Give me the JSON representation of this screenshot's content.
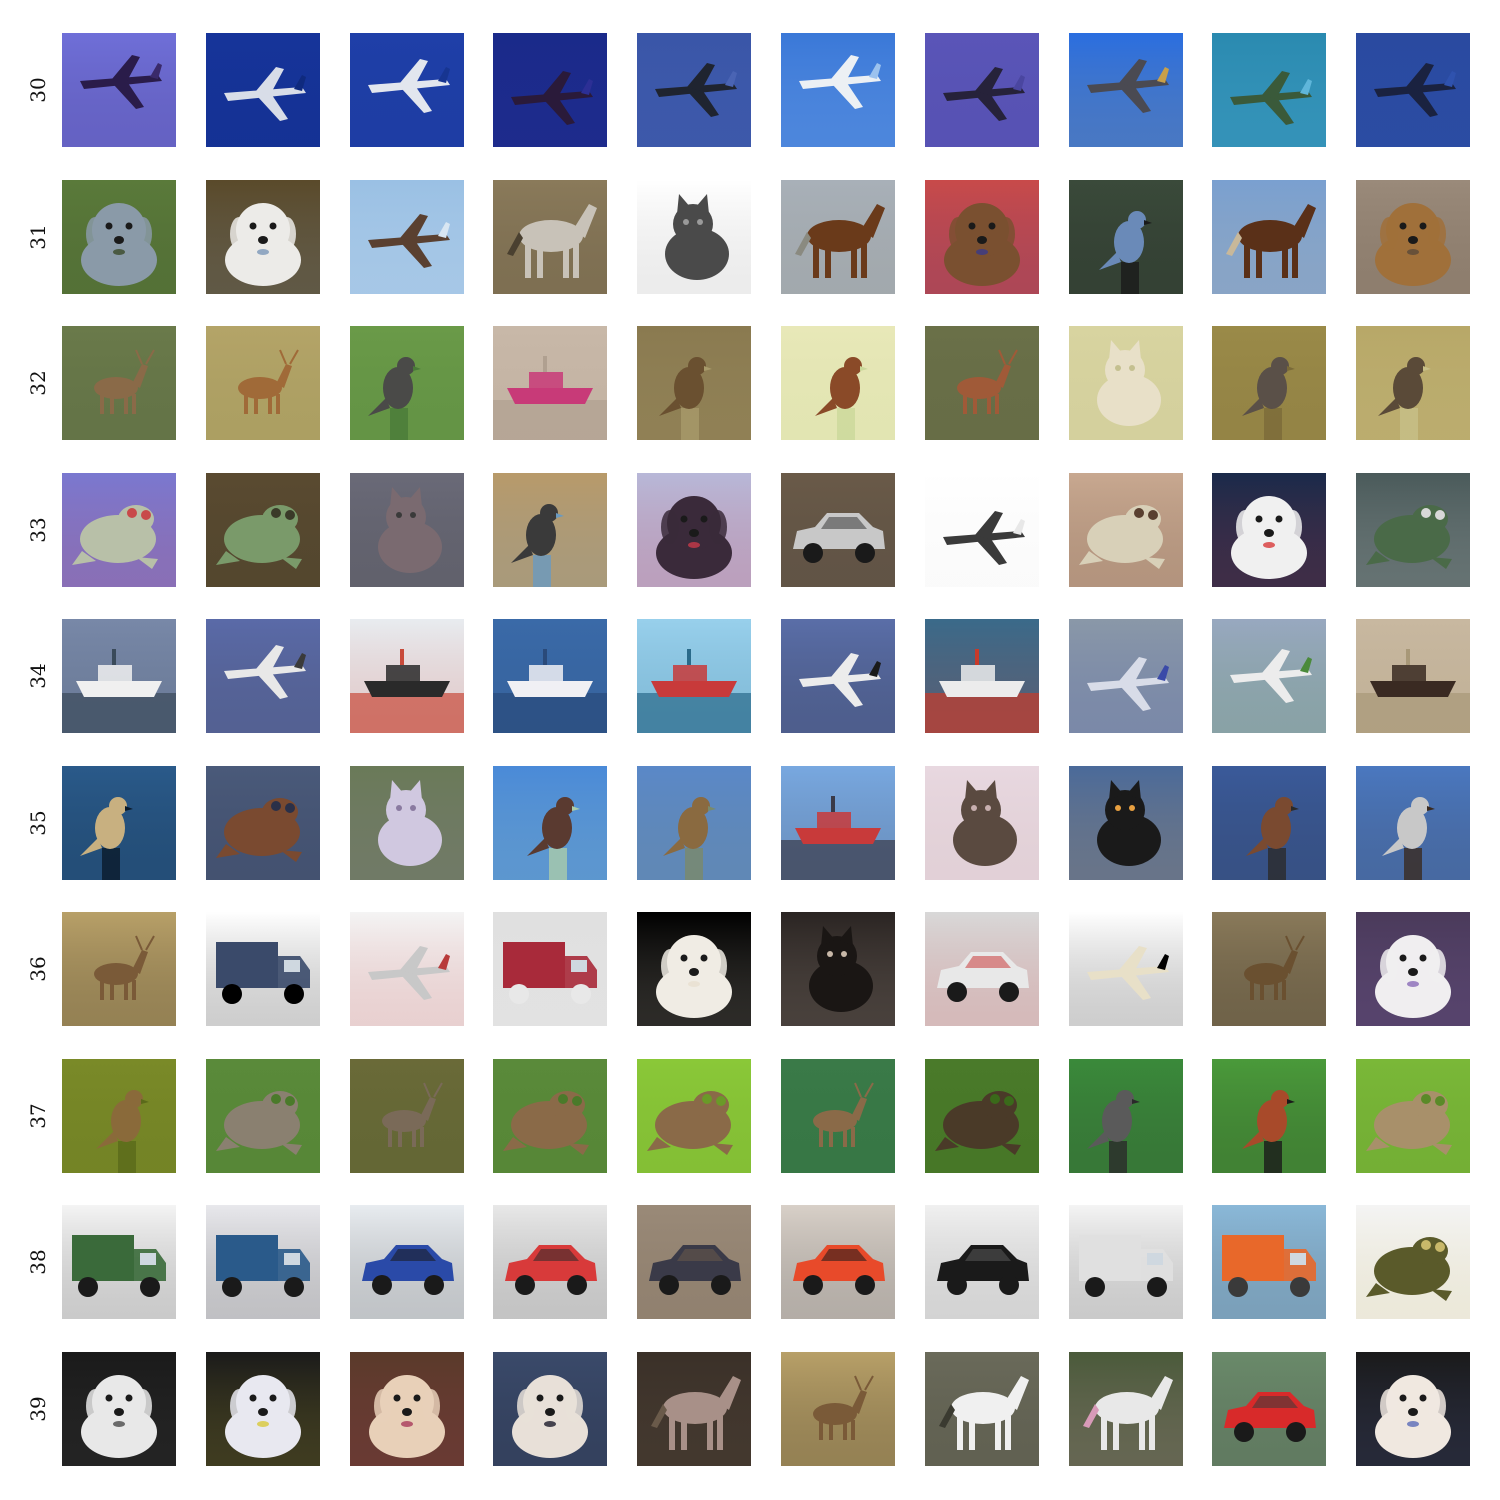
{
  "rows": [
    {
      "label": "30",
      "cells": [
        {
          "subject": "airplane",
          "bg": "#6f6fd8",
          "accent": "#2a1c4a",
          "detail": "#3a2a6a"
        },
        {
          "subject": "airplane",
          "bg": "#16349a",
          "accent": "#d8dde8",
          "detail": "#0f2a7e"
        },
        {
          "subject": "airplane",
          "bg": "#1f3fa8",
          "accent": "#e2e6ee",
          "detail": "#173591"
        },
        {
          "subject": "airplane",
          "bg": "#1a2a8a",
          "accent": "#2a1a3a",
          "detail": "#2c2f95"
        },
        {
          "subject": "airplane",
          "bg": "#3a56a8",
          "accent": "#1f2430",
          "detail": "#4a64b4"
        },
        {
          "subject": "airplane",
          "bg": "#3a78d8",
          "accent": "#ecf0f4",
          "detail": "#9cc2ee"
        },
        {
          "subject": "airplane",
          "bg": "#5a55b8",
          "accent": "#26223a",
          "detail": "#4a46a0"
        },
        {
          "subject": "airplane",
          "bg": "#2a6ee0",
          "accent": "#4a4a52",
          "detail": "#c8a04a"
        },
        {
          "subject": "airplane",
          "bg": "#2a8ab0",
          "accent": "#3a5a3a",
          "detail": "#5fb6da"
        },
        {
          "subject": "airplane",
          "bg": "#2a4aa0",
          "accent": "#1a2240",
          "detail": "#2f52ae"
        }
      ]
    },
    {
      "label": "31",
      "cells": [
        {
          "subject": "dog",
          "bg": "#5a7a3a",
          "accent": "#8a9aa8",
          "detail": "#3a4a28"
        },
        {
          "subject": "dog",
          "bg": "#5a4a2a",
          "accent": "#ecebe8",
          "detail": "#7c97b8"
        },
        {
          "subject": "airplane",
          "bg": "#9ac0e4",
          "accent": "#5a4030",
          "detail": "#d8e6f2"
        },
        {
          "subject": "horse",
          "bg": "#8a7a5a",
          "accent": "#c8c2b8",
          "detail": "#4a4030"
        },
        {
          "subject": "cat",
          "bg": "#ffffff",
          "accent": "#4a4a4a",
          "detail": "#9a9a9a"
        },
        {
          "subject": "horse",
          "bg": "#a8b0b8",
          "accent": "#6a3a1a",
          "detail": "#8a8a80"
        },
        {
          "subject": "dog",
          "bg": "#c84a4a",
          "accent": "#7a5030",
          "detail": "#3a3a8a"
        },
        {
          "subject": "bird",
          "bg": "#3a4a3a",
          "accent": "#6a8ab8",
          "detail": "#1a1a1a"
        },
        {
          "subject": "horse",
          "bg": "#7aa0d0",
          "accent": "#5a3018",
          "detail": "#c8b89a"
        },
        {
          "subject": "dog",
          "bg": "#9a8a7a",
          "accent": "#a0703a",
          "detail": "#5a4a3a"
        }
      ]
    },
    {
      "label": "32",
      "cells": [
        {
          "subject": "deer",
          "bg": "#6a7a4a",
          "accent": "#8a6a48",
          "detail": "#4a5a3a"
        },
        {
          "subject": "deer",
          "bg": "#b4a468",
          "accent": "#a06a38",
          "detail": "#8a8a4a"
        },
        {
          "subject": "bird",
          "bg": "#6a9a48",
          "accent": "#4a4a48",
          "detail": "#4a7a38"
        },
        {
          "subject": "ship",
          "bg": "#c8b8a8",
          "accent": "#c83a78",
          "detail": "#b0a090"
        },
        {
          "subject": "bird",
          "bg": "#8a7a50",
          "accent": "#6a5030",
          "detail": "#a89a6a"
        },
        {
          "subject": "bird",
          "bg": "#e8e8b8",
          "accent": "#8a4a28",
          "detail": "#cad89a"
        },
        {
          "subject": "deer",
          "bg": "#6a7048",
          "accent": "#a05a38",
          "detail": "#5a6040"
        },
        {
          "subject": "cat",
          "bg": "#d8d4a0",
          "accent": "#e8e0c8",
          "detail": "#c4c090"
        },
        {
          "subject": "bird",
          "bg": "#9a8a48",
          "accent": "#5a5048",
          "detail": "#7a6a38"
        },
        {
          "subject": "bird",
          "bg": "#b8a868",
          "accent": "#5a4a38",
          "detail": "#c8c088"
        }
      ]
    },
    {
      "label": "33",
      "cells": [
        {
          "subject": "frog",
          "bg": "#7a78d0",
          "accent": "#b8c0a8",
          "detail": "#c84a4a"
        },
        {
          "subject": "frog",
          "bg": "#5a4a30",
          "accent": "#7a9a6a",
          "detail": "#3a3a28"
        },
        {
          "subject": "cat",
          "bg": "#6a6a78",
          "accent": "#7a6a70",
          "detail": "#3a3a3a"
        },
        {
          "subject": "bird",
          "bg": "#b89a6a",
          "accent": "#3a3a3a",
          "detail": "#6a9ac0"
        },
        {
          "subject": "dog",
          "bg": "#b8b8d8",
          "accent": "#3a2a3a",
          "detail": "#c83a4a"
        },
        {
          "subject": "automobile",
          "bg": "#6a5a48",
          "accent": "#c8c8c8",
          "detail": "#3a3a3a"
        },
        {
          "subject": "airplane",
          "bg": "#ffffff",
          "accent": "#3a3a3a",
          "detail": "#e8e8e8"
        },
        {
          "subject": "frog",
          "bg": "#c8a890",
          "accent": "#d8d0b8",
          "detail": "#5a4030"
        },
        {
          "subject": "dog",
          "bg": "#1a2a4a",
          "accent": "#f0f0f0",
          "detail": "#d83a3a"
        },
        {
          "subject": "frog",
          "bg": "#4a5a5a",
          "accent": "#4a6a48",
          "detail": "#d8d8d8"
        }
      ]
    },
    {
      "label": "34",
      "cells": [
        {
          "subject": "ship",
          "bg": "#7888a8",
          "accent": "#f0f0f0",
          "detail": "#3a4a5a"
        },
        {
          "subject": "airplane",
          "bg": "#5a6aa8",
          "accent": "#e8e8e8",
          "detail": "#3a3a3a"
        },
        {
          "subject": "ship",
          "bg": "#e8ecf0",
          "accent": "#2a2a2a",
          "detail": "#c84a3a"
        },
        {
          "subject": "ship",
          "bg": "#3a6aa8",
          "accent": "#f0f0f4",
          "detail": "#2a4a7a"
        },
        {
          "subject": "ship",
          "bg": "#98d0ec",
          "accent": "#c83a3a",
          "detail": "#2a6a8a"
        },
        {
          "subject": "airplane",
          "bg": "#5a6ea8",
          "accent": "#ececec",
          "detail": "#1a1a1a"
        },
        {
          "subject": "ship",
          "bg": "#3a6a8a",
          "accent": "#ececec",
          "detail": "#c83a2a"
        },
        {
          "subject": "airplane",
          "bg": "#8a98a8",
          "accent": "#d8dce8",
          "detail": "#3a4aa8"
        },
        {
          "subject": "airplane",
          "bg": "#98a8c0",
          "accent": "#ececec",
          "detail": "#4a8a3a"
        },
        {
          "subject": "ship",
          "bg": "#c8b8a0",
          "accent": "#3a2a22",
          "detail": "#a89878"
        }
      ]
    },
    {
      "label": "35",
      "cells": [
        {
          "subject": "bird",
          "bg": "#2a5a8a",
          "accent": "#c8b080",
          "detail": "#0a1a2a"
        },
        {
          "subject": "frog",
          "bg": "#4a5a7a",
          "accent": "#7a4a30",
          "detail": "#2a3048"
        },
        {
          "subject": "cat",
          "bg": "#6a7a58",
          "accent": "#d0c8e0",
          "detail": "#8a7aa0"
        },
        {
          "subject": "bird",
          "bg": "#4a8ad8",
          "accent": "#5a3a30",
          "detail": "#aaccaa"
        },
        {
          "subject": "bird",
          "bg": "#5a88c8",
          "accent": "#8a6a40",
          "detail": "#7a8a6a"
        },
        {
          "subject": "ship",
          "bg": "#78a8e0",
          "accent": "#c83a3a",
          "detail": "#3a3a48"
        },
        {
          "subject": "cat",
          "bg": "#e8d8e0",
          "accent": "#5a4a40",
          "detail": "#c8b0b0"
        },
        {
          "subject": "cat",
          "bg": "#4a6a9a",
          "accent": "#1a1a1a",
          "detail": "#e8a040"
        },
        {
          "subject": "bird",
          "bg": "#3a5a9a",
          "accent": "#7a4a30",
          "detail": "#2a2a2a"
        },
        {
          "subject": "bird",
          "bg": "#4a78c0",
          "accent": "#c8c8c8",
          "detail": "#3a2a20"
        }
      ]
    },
    {
      "label": "36",
      "cells": [
        {
          "subject": "deer",
          "bg": "#b8a068",
          "accent": "#7a5a38",
          "detail": "#000000"
        },
        {
          "subject": "truck",
          "bg": "#ffffff",
          "accent": "#3a4a6a",
          "detail": "#000000"
        },
        {
          "subject": "airplane",
          "bg": "#f4f4f4",
          "accent": "#c8c8c8",
          "detail": "#b83a3a"
        },
        {
          "subject": "truck",
          "bg": "#e0e0e0",
          "accent": "#a82a3a",
          "detail": "#e8e8e8"
        },
        {
          "subject": "dog",
          "bg": "#000000",
          "accent": "#f0ece4",
          "detail": "#e8e0d0"
        },
        {
          "subject": "cat",
          "bg": "#2a2422",
          "accent": "#1a1614",
          "detail": "#c8b8a8"
        },
        {
          "subject": "automobile",
          "bg": "#d8d8d8",
          "accent": "#e8e8e8",
          "detail": "#c83a3a"
        },
        {
          "subject": "airplane",
          "bg": "#ffffff",
          "accent": "#e8e0c8",
          "detail": "#000000"
        },
        {
          "subject": "deer",
          "bg": "#8a7a5a",
          "accent": "#6a5030",
          "detail": "#000000"
        },
        {
          "subject": "dog",
          "bg": "#4a3a5a",
          "accent": "#f0eef0",
          "detail": "#8a6ab8"
        }
      ]
    },
    {
      "label": "37",
      "cells": [
        {
          "subject": "bird",
          "bg": "#7a8a28",
          "accent": "#8a6a3a",
          "detail": "#5a6a1a"
        },
        {
          "subject": "frog",
          "bg": "#5a8a3a",
          "accent": "#8a8070",
          "detail": "#4a7a2a"
        },
        {
          "subject": "deer",
          "bg": "#6a6a38",
          "accent": "#7a6a58",
          "detail": "#4a5a28"
        },
        {
          "subject": "frog",
          "bg": "#5a8a3a",
          "accent": "#8a6a48",
          "detail": "#4a7a2a"
        },
        {
          "subject": "frog",
          "bg": "#8ac838",
          "accent": "#8a6a48",
          "detail": "#6a9a28"
        },
        {
          "subject": "deer",
          "bg": "#3a7a48",
          "accent": "#8a6a48",
          "detail": "#2a6a38"
        },
        {
          "subject": "frog",
          "bg": "#4a7a2a",
          "accent": "#4a3a28",
          "detail": "#3a6a1a"
        },
        {
          "subject": "bird",
          "bg": "#3a8a3a",
          "accent": "#5a5a5a",
          "detail": "#2a2a2a"
        },
        {
          "subject": "bird",
          "bg": "#4a9a3a",
          "accent": "#a84a2a",
          "detail": "#1a1a1a"
        },
        {
          "subject": "frog",
          "bg": "#7ab838",
          "accent": "#a8906a",
          "detail": "#5a8a28"
        }
      ]
    },
    {
      "label": "38",
      "cells": [
        {
          "subject": "truck",
          "bg": "#f4f4f4",
          "accent": "#3a6a3a",
          "detail": "#1a1a1a"
        },
        {
          "subject": "truck",
          "bg": "#e8e8ec",
          "accent": "#2a5a8a",
          "detail": "#1a1a1a"
        },
        {
          "subject": "automobile",
          "bg": "#e8ecf0",
          "accent": "#2a4aa8",
          "detail": "#1a1a1a"
        },
        {
          "subject": "automobile",
          "bg": "#e8e8e8",
          "accent": "#d83a3a",
          "detail": "#2a2a2a"
        },
        {
          "subject": "automobile",
          "bg": "#9a8a78",
          "accent": "#3a3a48",
          "detail": "#6a5a4a"
        },
        {
          "subject": "automobile",
          "bg": "#d8d0c8",
          "accent": "#e84a2a",
          "detail": "#1a1a1a"
        },
        {
          "subject": "automobile",
          "bg": "#f0f0f0",
          "accent": "#1a1a1a",
          "detail": "#5a5a5a"
        },
        {
          "subject": "truck",
          "bg": "#f4f4f4",
          "accent": "#e0e0e0",
          "detail": "#1a1a1a"
        },
        {
          "subject": "truck",
          "bg": "#8ab8d8",
          "accent": "#e8682a",
          "detail": "#3a3a3a"
        },
        {
          "subject": "frog",
          "bg": "#f4f4f4",
          "accent": "#5a5a2a",
          "detail": "#c8b86a"
        }
      ]
    },
    {
      "label": "39",
      "cells": [
        {
          "subject": "dog",
          "bg": "#1a1a1a",
          "accent": "#e8e8e8",
          "detail": "#4a4a4a"
        },
        {
          "subject": "dog",
          "bg": "#1a1a1a",
          "accent": "#e8e8f0",
          "detail": "#d8c83a"
        },
        {
          "subject": "dog",
          "bg": "#5a3a2a",
          "accent": "#e8d0b8",
          "detail": "#a83a5a"
        },
        {
          "subject": "dog",
          "bg": "#3a4a6a",
          "accent": "#e8e0d8",
          "detail": "#1a1a2a"
        },
        {
          "subject": "horse",
          "bg": "#3a3028",
          "accent": "#a89088",
          "detail": "#6a5a4a"
        },
        {
          "subject": "deer",
          "bg": "#b8a068",
          "accent": "#7a5a38",
          "detail": "#000000"
        },
        {
          "subject": "horse",
          "bg": "#6a6a5a",
          "accent": "#f0f0f0",
          "detail": "#3a3a30"
        },
        {
          "subject": "horse",
          "bg": "#4a5a3a",
          "accent": "#e8e8e8",
          "detail": "#d89ab8"
        },
        {
          "subject": "automobile",
          "bg": "#6a8a6a",
          "accent": "#d82a2a",
          "detail": "#3a3a3a"
        },
        {
          "subject": "dog",
          "bg": "#1a1a1a",
          "accent": "#f0e8e0",
          "detail": "#5a6ab8"
        }
      ]
    }
  ]
}
